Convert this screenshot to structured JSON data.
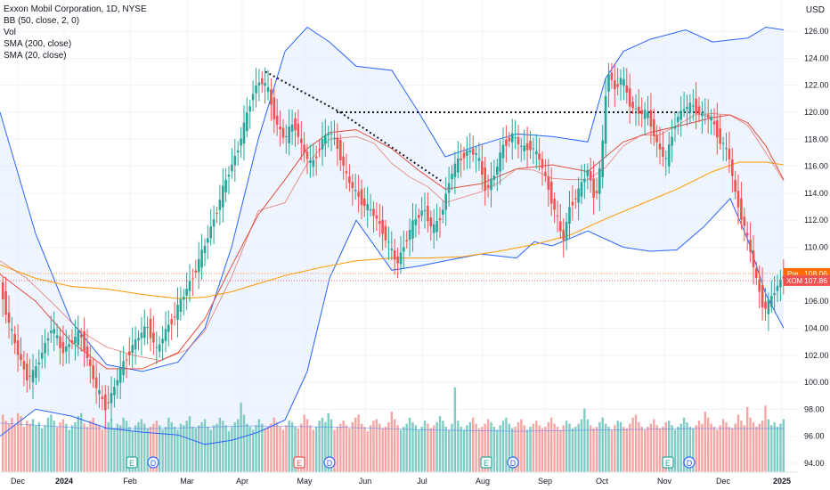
{
  "legend": {
    "title": "Exxon Mobil Corporation, 1D, NYSE",
    "bb": "BB (50, close, 2, 0)",
    "vol": "Vol",
    "sma200": "SMA (200, close)",
    "sma20": "SMA (20, close)"
  },
  "axis": {
    "currency": "USD"
  },
  "colors": {
    "up": "#26a69a",
    "down": "#ef5350",
    "vol_up": "#80cbc4",
    "vol_down": "#f4a6a4",
    "bb": "#2962ff",
    "bb_fill": "#e3effd",
    "sma200": "#ff9800",
    "sma20": "#e64a3c",
    "pre": "#ff6d00",
    "price": "#ef5350"
  },
  "chart_data": {
    "type": "candlestick",
    "title": "Exxon Mobil Corporation, 1D, NYSE",
    "ylim": [
      94,
      127
    ],
    "y_ticks": [
      "94.00",
      "96.00",
      "98.00",
      "100.00",
      "102.00",
      "104.00",
      "106.00",
      "108.00",
      "110.00",
      "112.00",
      "114.00",
      "116.00",
      "118.00",
      "120.00",
      "122.00",
      "124.00",
      "126.00"
    ],
    "x_ticks": [
      "Dec",
      "2024",
      "Feb",
      "Mar",
      "Apr",
      "May",
      "Jun",
      "Jul",
      "Aug",
      "Sep",
      "Oct",
      "Nov",
      "Dec",
      "2025"
    ],
    "price_labels": [
      {
        "name": "Pre",
        "value": "108.06"
      },
      {
        "name": "XOM",
        "value": "107.86"
      }
    ],
    "close_path": [
      [
        0,
        107.2
      ],
      [
        10,
        104.3
      ],
      [
        20,
        102.2
      ],
      [
        30,
        100.4
      ],
      [
        38,
        100.6
      ],
      [
        48,
        102.4
      ],
      [
        58,
        104.1
      ],
      [
        70,
        102.3
      ],
      [
        80,
        103.0
      ],
      [
        90,
        103.6
      ],
      [
        100,
        101.4
      ],
      [
        108,
        99.6
      ],
      [
        118,
        98.2
      ],
      [
        126,
        99.2
      ],
      [
        136,
        101.0
      ],
      [
        146,
        102.4
      ],
      [
        156,
        103.4
      ],
      [
        166,
        104.2
      ],
      [
        176,
        102.3
      ],
      [
        186,
        103.8
      ],
      [
        196,
        105.0
      ],
      [
        206,
        106.4
      ],
      [
        216,
        107.8
      ],
      [
        226,
        109.4
      ],
      [
        236,
        111.3
      ],
      [
        246,
        113.3
      ],
      [
        256,
        115.4
      ],
      [
        266,
        117.1
      ],
      [
        276,
        119.4
      ],
      [
        284,
        121.5
      ],
      [
        292,
        122.4
      ],
      [
        300,
        121.8
      ],
      [
        310,
        119.2
      ],
      [
        320,
        118.0
      ],
      [
        330,
        119.3
      ],
      [
        340,
        117.2
      ],
      [
        350,
        116.0
      ],
      [
        360,
        117.7
      ],
      [
        370,
        118.6
      ],
      [
        380,
        117.3
      ],
      [
        390,
        115.0
      ],
      [
        400,
        114.0
      ],
      [
        410,
        113.1
      ],
      [
        420,
        112.4
      ],
      [
        430,
        111.2
      ],
      [
        440,
        109.6
      ],
      [
        446,
        108.8
      ],
      [
        456,
        110.6
      ],
      [
        466,
        112.0
      ],
      [
        476,
        112.9
      ],
      [
        486,
        111.2
      ],
      [
        496,
        112.5
      ],
      [
        506,
        115.4
      ],
      [
        516,
        116.5
      ],
      [
        526,
        117.2
      ],
      [
        536,
        116.8
      ],
      [
        546,
        114.2
      ],
      [
        556,
        115.5
      ],
      [
        566,
        117.7
      ],
      [
        576,
        118.3
      ],
      [
        586,
        117.3
      ],
      [
        596,
        117.5
      ],
      [
        606,
        116.5
      ],
      [
        616,
        114.3
      ],
      [
        626,
        112.0
      ],
      [
        632,
        110.4
      ],
      [
        640,
        113.1
      ],
      [
        650,
        114.1
      ],
      [
        660,
        115.8
      ],
      [
        668,
        113.4
      ],
      [
        676,
        116.8
      ],
      [
        682,
        123.3
      ],
      [
        690,
        121.7
      ],
      [
        698,
        122.6
      ],
      [
        708,
        120.5
      ],
      [
        718,
        120.0
      ],
      [
        728,
        119.8
      ],
      [
        738,
        117.6
      ],
      [
        748,
        116.4
      ],
      [
        758,
        119.3
      ],
      [
        768,
        120.3
      ],
      [
        778,
        120.5
      ],
      [
        788,
        119.8
      ],
      [
        798,
        119.6
      ],
      [
        808,
        118.0
      ],
      [
        818,
        116.9
      ],
      [
        826,
        113.8
      ],
      [
        834,
        112.0
      ],
      [
        842,
        109.8
      ],
      [
        850,
        107.4
      ],
      [
        858,
        105.4
      ],
      [
        864,
        105.9
      ],
      [
        870,
        106.8
      ],
      [
        876,
        107.5
      ],
      [
        880,
        107.9
      ]
    ],
    "bb_upper": [
      [
        0,
        120
      ],
      [
        40,
        111
      ],
      [
        80,
        104.5
      ],
      [
        120,
        101.3
      ],
      [
        160,
        100.8
      ],
      [
        200,
        101.5
      ],
      [
        230,
        104
      ],
      [
        260,
        110
      ],
      [
        290,
        118
      ],
      [
        320,
        124.5
      ],
      [
        345,
        126.3
      ],
      [
        370,
        125.2
      ],
      [
        400,
        123.4
      ],
      [
        440,
        123.1
      ],
      [
        470,
        120
      ],
      [
        500,
        116.7
      ],
      [
        540,
        117.6
      ],
      [
        580,
        118.4
      ],
      [
        620,
        118.2
      ],
      [
        660,
        117.8
      ],
      [
        680,
        122.5
      ],
      [
        700,
        124.5
      ],
      [
        730,
        125.4
      ],
      [
        770,
        126.1
      ],
      [
        800,
        125.2
      ],
      [
        840,
        125.5
      ],
      [
        860,
        126.3
      ],
      [
        880,
        126.1
      ]
    ],
    "bb_middle": [
      [
        0,
        108
      ],
      [
        40,
        106
      ],
      [
        80,
        103
      ],
      [
        120,
        101
      ],
      [
        160,
        101
      ],
      [
        200,
        102.2
      ],
      [
        230,
        104.7
      ],
      [
        260,
        108.6
      ],
      [
        290,
        112.4
      ],
      [
        320,
        115
      ],
      [
        345,
        117.3
      ],
      [
        370,
        118.5
      ],
      [
        400,
        118.7
      ],
      [
        440,
        117.3
      ],
      [
        470,
        115.7
      ],
      [
        500,
        114.3
      ],
      [
        540,
        114.7
      ],
      [
        580,
        115.8
      ],
      [
        620,
        116.1
      ],
      [
        660,
        115.6
      ],
      [
        700,
        117.8
      ],
      [
        730,
        118.5
      ],
      [
        770,
        119.1
      ],
      [
        800,
        119.6
      ],
      [
        820,
        119.8
      ],
      [
        840,
        119.2
      ],
      [
        860,
        117.5
      ],
      [
        880,
        115
      ]
    ],
    "bb_lower": [
      [
        0,
        96
      ],
      [
        40,
        98
      ],
      [
        80,
        97.5
      ],
      [
        120,
        96.6
      ],
      [
        160,
        96.3
      ],
      [
        200,
        96.1
      ],
      [
        230,
        95.4
      ],
      [
        260,
        95.7
      ],
      [
        290,
        96.3
      ],
      [
        320,
        97.2
      ],
      [
        345,
        100.8
      ],
      [
        370,
        107.7
      ],
      [
        400,
        112
      ],
      [
        440,
        108.3
      ],
      [
        470,
        108.6
      ],
      [
        500,
        109
      ],
      [
        540,
        109.5
      ],
      [
        580,
        109.2
      ],
      [
        600,
        110.4
      ],
      [
        620,
        110.1
      ],
      [
        660,
        111.2
      ],
      [
        700,
        110
      ],
      [
        730,
        109.7
      ],
      [
        760,
        109.8
      ],
      [
        790,
        111.5
      ],
      [
        820,
        113.6
      ],
      [
        840,
        110.5
      ],
      [
        860,
        106.5
      ],
      [
        880,
        104
      ]
    ],
    "sma200": [
      [
        0,
        108.7
      ],
      [
        40,
        107.7
      ],
      [
        80,
        107.1
      ],
      [
        120,
        106.9
      ],
      [
        160,
        106.5
      ],
      [
        200,
        106.2
      ],
      [
        230,
        106.3
      ],
      [
        260,
        106.7
      ],
      [
        290,
        107.3
      ],
      [
        320,
        107.9
      ],
      [
        360,
        108.5
      ],
      [
        400,
        109
      ],
      [
        440,
        109.2
      ],
      [
        480,
        109.2
      ],
      [
        520,
        109.3
      ],
      [
        560,
        109.7
      ],
      [
        600,
        110.2
      ],
      [
        640,
        110.9
      ],
      [
        680,
        112.1
      ],
      [
        720,
        113.2
      ],
      [
        760,
        114.3
      ],
      [
        800,
        115.6
      ],
      [
        830,
        116.3
      ],
      [
        860,
        116.3
      ],
      [
        880,
        116.1
      ]
    ],
    "sma20": [
      [
        0,
        109
      ],
      [
        30,
        107.7
      ],
      [
        60,
        105.8
      ],
      [
        90,
        103.8
      ],
      [
        120,
        102.6
      ],
      [
        150,
        102
      ],
      [
        180,
        101.6
      ],
      [
        210,
        102.4
      ],
      [
        230,
        103.8
      ],
      [
        260,
        107.8
      ],
      [
        290,
        112.7
      ],
      [
        320,
        113.3
      ],
      [
        345,
        116.2
      ],
      [
        370,
        118
      ],
      [
        400,
        118.2
      ],
      [
        420,
        117.7
      ],
      [
        440,
        116.2
      ],
      [
        460,
        115.2
      ],
      [
        480,
        114.5
      ],
      [
        500,
        113.3
      ],
      [
        520,
        113.7
      ],
      [
        540,
        114.1
      ],
      [
        560,
        114.8
      ],
      [
        580,
        115.8
      ],
      [
        600,
        115.7
      ],
      [
        620,
        115.1
      ],
      [
        640,
        115
      ],
      [
        660,
        115
      ],
      [
        680,
        115.9
      ],
      [
        700,
        117.5
      ],
      [
        720,
        118.3
      ],
      [
        740,
        118.3
      ],
      [
        760,
        119
      ],
      [
        780,
        119.8
      ],
      [
        800,
        119.9
      ],
      [
        820,
        119.8
      ],
      [
        840,
        119
      ],
      [
        860,
        117
      ],
      [
        880,
        114.9
      ]
    ],
    "volume": [
      3.8,
      3.4,
      3.2,
      3.6,
      3.1,
      3.9,
      3.7,
      3.0,
      3.4,
      3.2,
      3.5,
      3.1,
      3.3,
      2.9,
      3.1,
      3.6,
      3.8,
      3.4,
      3.0,
      3.3,
      3.5,
      3.2,
      2.8,
      3.1,
      3.3,
      3.7,
      3.9,
      3.2,
      3.0,
      3.4,
      3.6,
      3.2,
      3.1,
      2.8,
      3.0,
      3.3,
      3.5,
      2.9,
      3.2,
      3.1,
      3.6,
      3.4,
      3.0,
      2.7,
      3.1,
      3.3,
      3.5,
      3.2,
      2.9,
      3.0,
      3.2,
      3.4,
      3.1,
      2.8,
      3.0,
      3.6,
      3.3,
      3.0,
      2.8,
      3.2,
      3.1,
      3.4,
      3.7,
      3.0,
      2.9,
      3.1,
      3.3,
      3.5,
      3.0,
      2.8,
      3.1,
      3.2,
      3.6,
      3.4,
      3.1,
      2.7,
      3.0,
      3.3,
      3.5,
      4.6,
      3.8,
      3.2,
      3.0,
      2.8,
      3.1,
      3.5,
      3.2,
      2.9,
      3.0,
      3.2,
      3.6,
      3.3,
      3.0,
      2.8,
      3.1,
      3.4,
      3.3,
      3.0,
      2.9,
      3.2,
      3.8,
      3.5,
      3.1,
      2.8,
      3.0,
      3.4,
      3.6,
      3.3,
      3.9,
      3.5,
      2.8,
      3.0,
      3.2,
      3.4,
      3.1,
      2.9,
      3.3,
      3.6,
      3.8,
      3.2,
      3.0,
      2.7,
      3.1,
      3.4,
      3.5,
      3.2,
      2.9,
      3.0,
      3.3,
      4.0,
      3.5,
      3.1,
      2.8,
      3.0,
      3.2,
      3.6,
      3.3,
      3.1,
      2.8,
      3.0,
      3.4,
      3.2,
      2.9,
      3.1,
      3.3,
      3.7,
      3.4,
      3.0,
      2.8,
      3.2,
      5.6,
      3.4,
      3.0,
      2.8,
      3.1,
      3.3,
      3.6,
      3.2,
      2.9,
      3.0,
      3.2,
      3.5,
      3.3,
      3.0,
      2.8,
      3.1,
      3.4,
      3.6,
      3.2,
      2.9,
      3.0,
      3.3,
      3.5,
      3.1,
      2.8,
      3.0,
      3.2,
      3.4,
      3.1,
      2.9,
      3.0,
      3.3,
      3.6,
      3.2,
      3.0,
      2.8,
      3.1,
      3.4,
      3.2,
      2.9,
      3.0,
      3.2,
      3.5,
      4.2,
      3.5,
      3.1,
      2.9,
      3.0,
      3.3,
      3.6,
      3.2,
      3.0,
      2.8,
      3.1,
      3.4,
      3.3,
      3.0,
      2.9,
      3.2,
      3.6,
      3.8,
      3.3,
      3.0,
      2.8,
      3.0,
      3.2,
      3.5,
      3.1,
      2.9,
      3.0,
      3.3,
      3.4,
      3.1,
      2.8,
      3.0,
      3.2,
      3.6,
      3.3,
      3.0,
      2.9,
      3.1,
      3.4,
      3.2,
      4.0,
      3.6,
      3.2,
      3.0,
      2.8,
      3.1,
      3.5,
      3.3,
      3.0,
      2.9,
      3.2,
      3.8,
      3.4,
      3.1,
      4.3,
      3.6,
      3.3,
      3.0,
      3.2,
      3.4,
      4.4,
      3.5,
      3.1,
      3.3,
      3.0,
      3.2,
      3.5
    ],
    "vol_overlay": [
      [
        0,
        3.6
      ],
      [
        100,
        3.2
      ],
      [
        180,
        3.2
      ],
      [
        280,
        3.4
      ],
      [
        380,
        3.3
      ],
      [
        480,
        3.1
      ],
      [
        580,
        3.0
      ],
      [
        680,
        3.1
      ],
      [
        780,
        3.2
      ],
      [
        880,
        3.2
      ]
    ]
  }
}
